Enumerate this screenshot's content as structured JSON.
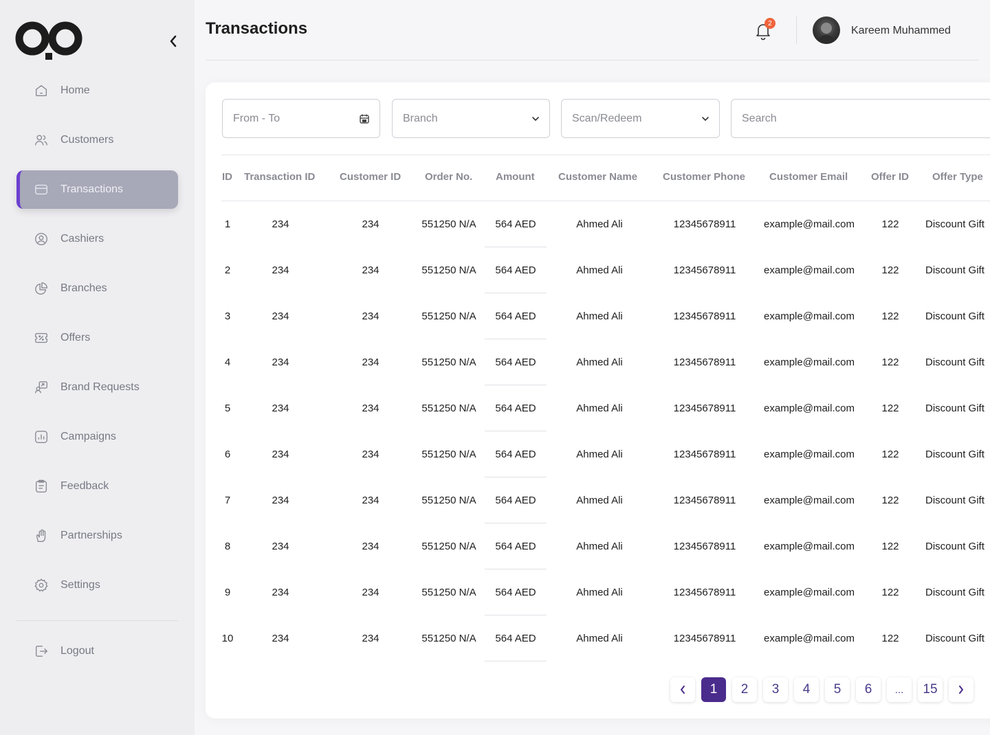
{
  "page": {
    "title": "Transactions"
  },
  "header": {
    "notifications_count": "2",
    "user_name": "Kareem Muhammed"
  },
  "sidebar": {
    "items": [
      {
        "label": "Home",
        "icon": "home-icon",
        "active": false
      },
      {
        "label": "Customers",
        "icon": "customers-icon",
        "active": false
      },
      {
        "label": "Transactions",
        "icon": "card-icon",
        "active": true
      },
      {
        "label": "Cashiers",
        "icon": "user-circle-icon",
        "active": false
      },
      {
        "label": "Branches",
        "icon": "pie-chart-icon",
        "active": false
      },
      {
        "label": "Offers",
        "icon": "ticket-icon",
        "active": false
      },
      {
        "label": "Brand Requests",
        "icon": "request-icon",
        "active": false
      },
      {
        "label": "Campaigns",
        "icon": "bar-chart-icon",
        "active": false
      },
      {
        "label": "Feedback",
        "icon": "clipboard-icon",
        "active": false
      },
      {
        "label": "Partnerships",
        "icon": "handshake-icon",
        "active": false
      },
      {
        "label": "Settings",
        "icon": "gear-icon",
        "active": false
      }
    ],
    "logout_label": "Logout"
  },
  "filters": {
    "date_placeholder": "From - To",
    "branch_placeholder": "Branch",
    "type_placeholder": "Scan/Redeem",
    "search_placeholder": "Search"
  },
  "table": {
    "columns": [
      "ID",
      "Transaction ID",
      "Customer ID",
      "Order No.",
      "Amount",
      "Customer Name",
      "Customer Phone",
      "Customer Email",
      "Offer ID",
      "Offer Type"
    ],
    "rows": [
      [
        "1",
        "234",
        "234",
        "551250 N/A",
        "564 AED",
        "Ahmed Ali",
        "12345678911",
        "example@mail.com",
        "122",
        "Discount Gift"
      ],
      [
        "2",
        "234",
        "234",
        "551250 N/A",
        "564 AED",
        "Ahmed Ali",
        "12345678911",
        "example@mail.com",
        "122",
        "Discount Gift"
      ],
      [
        "3",
        "234",
        "234",
        "551250 N/A",
        "564 AED",
        "Ahmed Ali",
        "12345678911",
        "example@mail.com",
        "122",
        "Discount Gift"
      ],
      [
        "4",
        "234",
        "234",
        "551250 N/A",
        "564 AED",
        "Ahmed Ali",
        "12345678911",
        "example@mail.com",
        "122",
        "Discount Gift"
      ],
      [
        "5",
        "234",
        "234",
        "551250 N/A",
        "564 AED",
        "Ahmed Ali",
        "12345678911",
        "example@mail.com",
        "122",
        "Discount Gift"
      ],
      [
        "6",
        "234",
        "234",
        "551250 N/A",
        "564 AED",
        "Ahmed Ali",
        "12345678911",
        "example@mail.com",
        "122",
        "Discount Gift"
      ],
      [
        "7",
        "234",
        "234",
        "551250 N/A",
        "564 AED",
        "Ahmed Ali",
        "12345678911",
        "example@mail.com",
        "122",
        "Discount Gift"
      ],
      [
        "8",
        "234",
        "234",
        "551250 N/A",
        "564 AED",
        "Ahmed Ali",
        "12345678911",
        "example@mail.com",
        "122",
        "Discount Gift"
      ],
      [
        "9",
        "234",
        "234",
        "551250 N/A",
        "564 AED",
        "Ahmed Ali",
        "12345678911",
        "example@mail.com",
        "122",
        "Discount Gift"
      ],
      [
        "10",
        "234",
        "234",
        "551250 N/A",
        "564 AED",
        "Ahmed Ali",
        "12345678911",
        "example@mail.com",
        "122",
        "Discount Gift"
      ]
    ]
  },
  "pagination": {
    "pages": [
      "1",
      "2",
      "3",
      "4",
      "5",
      "6",
      "...",
      "15"
    ],
    "current": "1"
  },
  "colors": {
    "accent": "#4a2c8c",
    "active_nav_bg": "#a7a8b8",
    "active_nav_bar": "#6b3fd0",
    "badge": "#f0643c"
  }
}
